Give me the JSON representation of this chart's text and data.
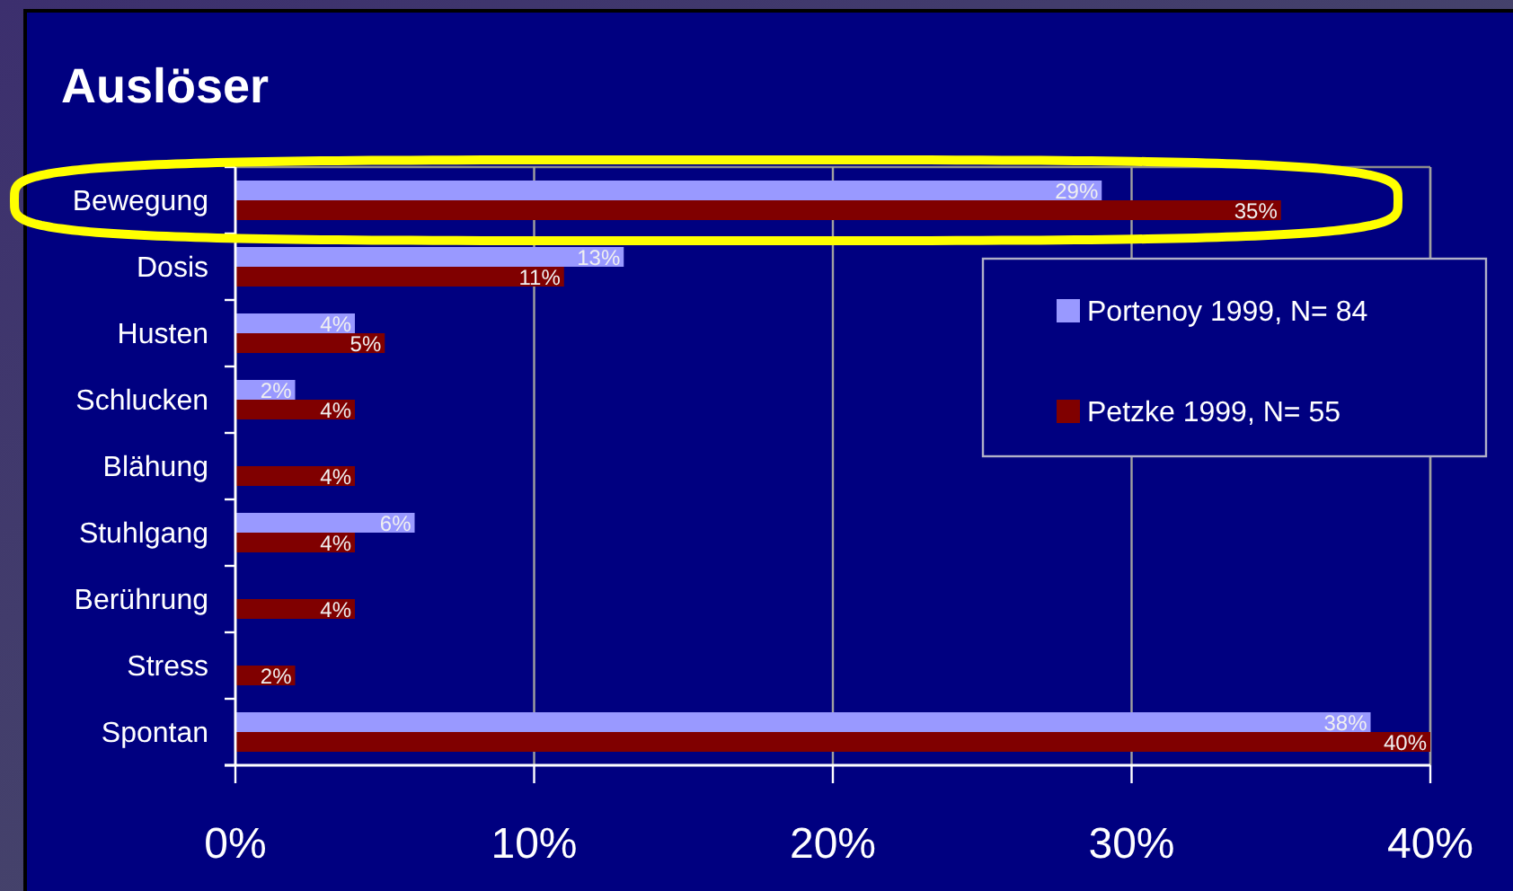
{
  "chart_data": {
    "type": "bar",
    "orientation": "horizontal",
    "title": "Auslöser",
    "categories": [
      "Bewegung",
      "Dosis",
      "Husten",
      "Schlucken",
      "Blähung",
      "Stuhlgang",
      "Berührung",
      "Stress",
      "Spontan"
    ],
    "series": [
      {
        "name": "Portenoy 1999, N= 84",
        "color": "#9999ff",
        "values": [
          29,
          13,
          4,
          2,
          null,
          6,
          null,
          null,
          38
        ],
        "value_labels": [
          "29%",
          "13%",
          "4%",
          "2%",
          null,
          "6%",
          null,
          null,
          "38%"
        ]
      },
      {
        "name": "Petzke 1999, N= 55",
        "color": "#800000",
        "values": [
          35,
          11,
          5,
          4,
          4,
          4,
          4,
          2,
          40
        ],
        "value_labels": [
          "35%",
          "11%",
          "5%",
          "4%",
          "4%",
          "4%",
          "4%",
          "2%",
          "40%"
        ]
      }
    ],
    "xlim": [
      0,
      40
    ],
    "xticks": [
      {
        "value": 0,
        "label": "0%"
      },
      {
        "value": 10,
        "label": "10%"
      },
      {
        "value": 20,
        "label": "20%"
      },
      {
        "value": 30,
        "label": "30%"
      },
      {
        "value": 40,
        "label": "40%"
      }
    ],
    "grid": "x",
    "legend": "top right"
  }
}
